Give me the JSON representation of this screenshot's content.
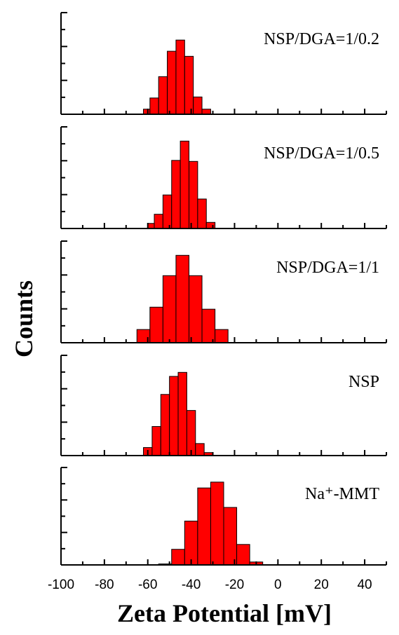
{
  "chart_data": {
    "type": "bar",
    "xlabel": "Zeta Potential [mV]",
    "ylabel": "Counts",
    "xlim": [
      -100,
      50
    ],
    "x_ticks": [
      -100,
      -80,
      -60,
      -40,
      -20,
      0,
      20,
      40
    ],
    "x_tick_labels": [
      "-100",
      "-80",
      "-60",
      "-40",
      "-20",
      "0",
      "20",
      "40"
    ],
    "bar_color": "#ff0000",
    "panels": [
      {
        "label": "NSP/DGA=1/0.2",
        "bins": [
          {
            "x0": -62,
            "x1": -59,
            "count": 0.05
          },
          {
            "x0": -59,
            "x1": -55,
            "count": 0.16
          },
          {
            "x0": -55,
            "x1": -51,
            "count": 0.37
          },
          {
            "x0": -51,
            "x1": -47,
            "count": 0.62
          },
          {
            "x0": -47,
            "x1": -43,
            "count": 0.73
          },
          {
            "x0": -43,
            "x1": -39,
            "count": 0.57
          },
          {
            "x0": -39,
            "x1": -35,
            "count": 0.17
          },
          {
            "x0": -35,
            "x1": -31,
            "count": 0.05
          }
        ]
      },
      {
        "label": "NSP/DGA=1/0.5",
        "bins": [
          {
            "x0": -60,
            "x1": -57,
            "count": 0.05
          },
          {
            "x0": -57,
            "x1": -53,
            "count": 0.14
          },
          {
            "x0": -53,
            "x1": -49,
            "count": 0.33
          },
          {
            "x0": -49,
            "x1": -45,
            "count": 0.67
          },
          {
            "x0": -45,
            "x1": -41,
            "count": 0.86
          },
          {
            "x0": -41,
            "x1": -37,
            "count": 0.66
          },
          {
            "x0": -37,
            "x1": -33,
            "count": 0.29
          },
          {
            "x0": -33,
            "x1": -29,
            "count": 0.06
          }
        ]
      },
      {
        "label": "NSP/DGA=1/1",
        "bins": [
          {
            "x0": -65,
            "x1": -59,
            "count": 0.13
          },
          {
            "x0": -59,
            "x1": -53,
            "count": 0.35
          },
          {
            "x0": -53,
            "x1": -47,
            "count": 0.66
          },
          {
            "x0": -47,
            "x1": -41,
            "count": 0.86
          },
          {
            "x0": -41,
            "x1": -35,
            "count": 0.66
          },
          {
            "x0": -35,
            "x1": -29,
            "count": 0.33
          },
          {
            "x0": -29,
            "x1": -23,
            "count": 0.13
          }
        ]
      },
      {
        "label": "NSP",
        "bins": [
          {
            "x0": -62,
            "x1": -58,
            "count": 0.08
          },
          {
            "x0": -58,
            "x1": -54,
            "count": 0.29
          },
          {
            "x0": -54,
            "x1": -50,
            "count": 0.61
          },
          {
            "x0": -50,
            "x1": -46,
            "count": 0.79
          },
          {
            "x0": -46,
            "x1": -42,
            "count": 0.83
          },
          {
            "x0": -42,
            "x1": -38,
            "count": 0.45
          },
          {
            "x0": -38,
            "x1": -34,
            "count": 0.12
          },
          {
            "x0": -34,
            "x1": -30,
            "count": 0.03
          }
        ]
      },
      {
        "label": "Na⁺-MMT",
        "bins": [
          {
            "x0": -55,
            "x1": -49,
            "count": 0.01
          },
          {
            "x0": -49,
            "x1": -43,
            "count": 0.16
          },
          {
            "x0": -43,
            "x1": -37,
            "count": 0.45
          },
          {
            "x0": -37,
            "x1": -31,
            "count": 0.79
          },
          {
            "x0": -31,
            "x1": -25,
            "count": 0.85
          },
          {
            "x0": -25,
            "x1": -19,
            "count": 0.59
          },
          {
            "x0": -19,
            "x1": -13,
            "count": 0.21
          },
          {
            "x0": -13,
            "x1": -7,
            "count": 0.03
          }
        ]
      }
    ]
  }
}
